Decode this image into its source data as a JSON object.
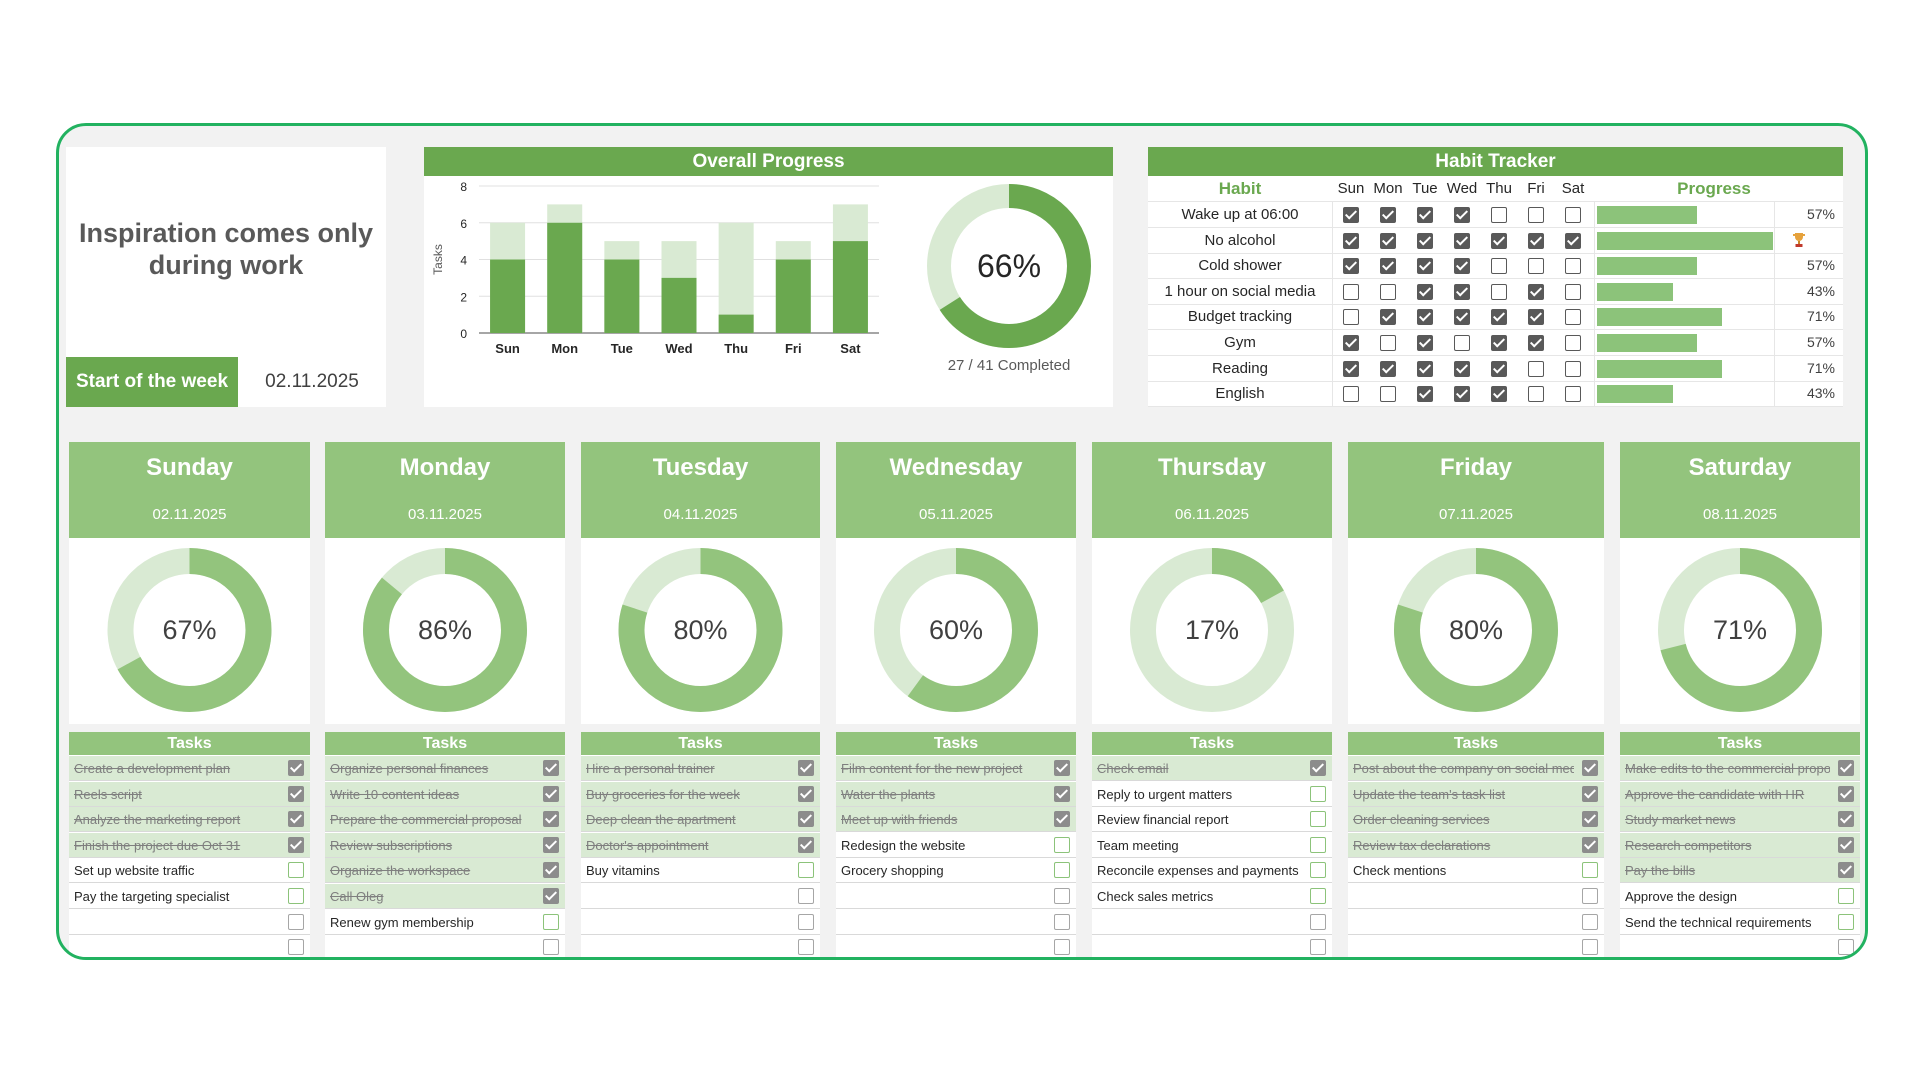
{
  "motivation": {
    "quote": "Inspiration comes only during work",
    "start_label": "Start of the week",
    "start_date": "02.11.2025"
  },
  "overall": {
    "title": "Overall Progress",
    "percent": "66%",
    "percent_value": 66,
    "completed": "27 / 41 Completed"
  },
  "chart_data": {
    "type": "bar",
    "title": "Overall Progress",
    "xlabel": "",
    "ylabel": "Tasks",
    "ylim": [
      0,
      8
    ],
    "yticks": [
      "0",
      "2",
      "4",
      "6",
      "8"
    ],
    "categories": [
      "Sun",
      "Mon",
      "Tue",
      "Wed",
      "Thu",
      "Fri",
      "Sat"
    ],
    "series": [
      {
        "values": [
          4,
          6,
          4,
          3,
          1,
          4,
          5
        ],
        "color": "#6aa84f"
      },
      {
        "values": [
          6,
          7,
          5,
          5,
          6,
          5,
          7
        ],
        "color": "#d9ead3"
      }
    ],
    "grid": true,
    "stacked": false
  },
  "habits": {
    "title": "Habit Tracker",
    "col_habit": "Habit",
    "col_progress": "Progress",
    "days": [
      "Sun",
      "Mon",
      "Tue",
      "Wed",
      "Thu",
      "Fri",
      "Sat"
    ],
    "rows": [
      {
        "name": "Wake up at 06:00",
        "checks": [
          1,
          1,
          1,
          1,
          0,
          0,
          0
        ],
        "progress": 57,
        "pct": "57%"
      },
      {
        "name": "No alcohol",
        "checks": [
          1,
          1,
          1,
          1,
          1,
          1,
          1
        ],
        "progress": 100,
        "pct": "",
        "trophy": true
      },
      {
        "name": "Cold shower",
        "checks": [
          1,
          1,
          1,
          1,
          0,
          0,
          0
        ],
        "progress": 57,
        "pct": "57%"
      },
      {
        "name": "1 hour on social media",
        "checks": [
          0,
          0,
          1,
          1,
          0,
          1,
          0
        ],
        "progress": 43,
        "pct": "43%"
      },
      {
        "name": "Budget tracking",
        "checks": [
          0,
          1,
          1,
          1,
          1,
          1,
          0
        ],
        "progress": 71,
        "pct": "71%"
      },
      {
        "name": "Gym",
        "checks": [
          1,
          0,
          1,
          0,
          1,
          1,
          0
        ],
        "progress": 57,
        "pct": "57%"
      },
      {
        "name": "Reading",
        "checks": [
          1,
          1,
          1,
          1,
          1,
          0,
          0
        ],
        "progress": 71,
        "pct": "71%"
      },
      {
        "name": "English",
        "checks": [
          0,
          0,
          1,
          1,
          1,
          0,
          0
        ],
        "progress": 43,
        "pct": "43%"
      }
    ],
    "trophy_icon": "trophy-icon"
  },
  "tasks_label": "Tasks",
  "days": [
    {
      "name": "Sunday",
      "date": "02.11.2025",
      "percent": "67%",
      "value": 67,
      "tasks": [
        {
          "text": "Create a development plan",
          "done": true
        },
        {
          "text": "Reels script",
          "done": true
        },
        {
          "text": "Analyze the marketing report",
          "done": true
        },
        {
          "text": "Finish the project due Oct 31",
          "done": true
        },
        {
          "text": "Set up website traffic",
          "done": false
        },
        {
          "text": "Pay the targeting specialist",
          "done": false
        },
        {
          "text": "",
          "done": false
        },
        {
          "text": "",
          "done": false
        }
      ]
    },
    {
      "name": "Monday",
      "date": "03.11.2025",
      "percent": "86%",
      "value": 86,
      "tasks": [
        {
          "text": "Organize personal finances",
          "done": true
        },
        {
          "text": "Write 10 content ideas",
          "done": true
        },
        {
          "text": "Prepare the commercial proposal",
          "done": true
        },
        {
          "text": "Review subscriptions",
          "done": true
        },
        {
          "text": "Organize the workspace",
          "done": true
        },
        {
          "text": "Call Oleg",
          "done": true
        },
        {
          "text": "Renew gym membership",
          "done": false
        },
        {
          "text": "",
          "done": false
        }
      ]
    },
    {
      "name": "Tuesday",
      "date": "04.11.2025",
      "percent": "80%",
      "value": 80,
      "tasks": [
        {
          "text": "Hire a personal trainer",
          "done": true
        },
        {
          "text": "Buy groceries for the week",
          "done": true
        },
        {
          "text": "Deep clean the apartment",
          "done": true
        },
        {
          "text": "Doctor's appointment",
          "done": true
        },
        {
          "text": "Buy vitamins",
          "done": false
        },
        {
          "text": "",
          "done": false
        },
        {
          "text": "",
          "done": false
        },
        {
          "text": "",
          "done": false
        }
      ]
    },
    {
      "name": "Wednesday",
      "date": "05.11.2025",
      "percent": "60%",
      "value": 60,
      "tasks": [
        {
          "text": "Film content for the new project",
          "done": true
        },
        {
          "text": "Water the plants",
          "done": true
        },
        {
          "text": "Meet up with friends",
          "done": true
        },
        {
          "text": "Redesign the website",
          "done": false
        },
        {
          "text": "Grocery shopping",
          "done": false
        },
        {
          "text": "",
          "done": false
        },
        {
          "text": "",
          "done": false
        },
        {
          "text": "",
          "done": false
        }
      ]
    },
    {
      "name": "Thursday",
      "date": "06.11.2025",
      "percent": "17%",
      "value": 17,
      "tasks": [
        {
          "text": "Check email",
          "done": true
        },
        {
          "text": "Reply to urgent matters",
          "done": false
        },
        {
          "text": "Review financial report",
          "done": false
        },
        {
          "text": "Team meeting",
          "done": false
        },
        {
          "text": "Reconcile expenses and payments",
          "done": false
        },
        {
          "text": "Check sales metrics",
          "done": false
        },
        {
          "text": "",
          "done": false
        },
        {
          "text": "",
          "done": false
        }
      ]
    },
    {
      "name": "Friday",
      "date": "07.11.2025",
      "percent": "80%",
      "value": 80,
      "tasks": [
        {
          "text": "Post about the company on social media",
          "done": true
        },
        {
          "text": "Update the team's task list",
          "done": true
        },
        {
          "text": "Order cleaning services",
          "done": true
        },
        {
          "text": "Review tax declarations",
          "done": true
        },
        {
          "text": "Check mentions",
          "done": false
        },
        {
          "text": "",
          "done": false
        },
        {
          "text": "",
          "done": false
        },
        {
          "text": "",
          "done": false
        }
      ]
    },
    {
      "name": "Saturday",
      "date": "08.11.2025",
      "percent": "71%",
      "value": 71,
      "tasks": [
        {
          "text": "Make edits to the commercial proposal",
          "done": true
        },
        {
          "text": "Approve the candidate with HR",
          "done": true
        },
        {
          "text": "Study market news",
          "done": true
        },
        {
          "text": "Research competitors",
          "done": true
        },
        {
          "text": "Pay the bills",
          "done": true
        },
        {
          "text": "Approve the design",
          "done": false
        },
        {
          "text": "Send the technical requirements",
          "done": false
        },
        {
          "text": "",
          "done": false
        }
      ]
    }
  ]
}
